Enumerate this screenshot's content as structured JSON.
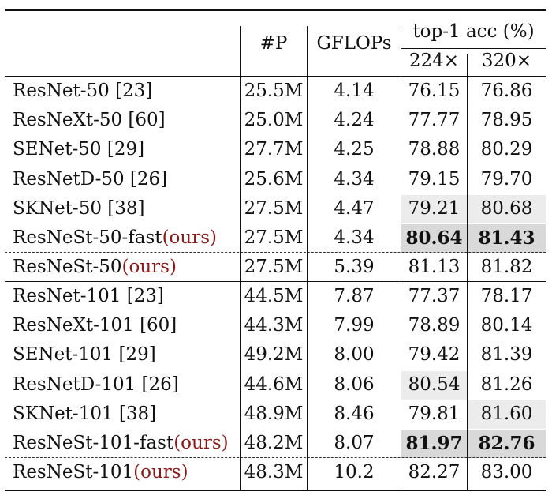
{
  "header": {
    "params": "#P",
    "gflops": "GFLOPs",
    "acc_group": "top-1 acc (%)",
    "res224": "224×",
    "res320": "320×"
  },
  "colors": {
    "ours": "#8b1a1a",
    "shade_light": "#ececec",
    "shade_dark": "#d9d9d9"
  },
  "groups": [
    {
      "rows": [
        {
          "name": "ResNet-50 [23]",
          "ours": "",
          "params": "25.5M",
          "gflops": "4.14",
          "acc224": "76.15",
          "acc320": "76.86"
        },
        {
          "name": "ResNeXt-50 [60]",
          "ours": "",
          "params": "25.0M",
          "gflops": "4.24",
          "acc224": "77.77",
          "acc320": "78.95"
        },
        {
          "name": "SENet-50 [29]",
          "ours": "",
          "params": "27.7M",
          "gflops": "4.25",
          "acc224": "78.88",
          "acc320": "80.29"
        },
        {
          "name": "ResNetD-50 [26]",
          "ours": "",
          "params": "25.6M",
          "gflops": "4.34",
          "acc224": "79.15",
          "acc320": "79.70"
        },
        {
          "name": "SKNet-50 [38]",
          "ours": "",
          "params": "27.5M",
          "gflops": "4.47",
          "acc224": "79.21",
          "acc320": "80.68",
          "shade224": "light",
          "shade320": "light"
        },
        {
          "name": "ResNeSt-50-fast",
          "ours": "(ours)",
          "params": "27.5M",
          "gflops": "4.34",
          "acc224": "80.64",
          "acc320": "81.43",
          "bold": true,
          "shade224": "dark",
          "shade320": "dark"
        },
        {
          "name": "ResNeSt-50",
          "ours": "(ours)",
          "params": "27.5M",
          "gflops": "5.39",
          "acc224": "81.13",
          "acc320": "81.82",
          "dashed_above": true
        }
      ]
    },
    {
      "rows": [
        {
          "name": "ResNet-101 [23]",
          "ours": "",
          "params": "44.5M",
          "gflops": "7.87",
          "acc224": "77.37",
          "acc320": "78.17"
        },
        {
          "name": "ResNeXt-101 [60]",
          "ours": "",
          "params": "44.3M",
          "gflops": "7.99",
          "acc224": "78.89",
          "acc320": "80.14"
        },
        {
          "name": "SENet-101 [29]",
          "ours": "",
          "params": "49.2M",
          "gflops": "8.00",
          "acc224": "79.42",
          "acc320": "81.39"
        },
        {
          "name": "ResNetD-101 [26]",
          "ours": "",
          "params": "44.6M",
          "gflops": "8.06",
          "acc224": "80.54",
          "acc320": "81.26",
          "shade224": "light"
        },
        {
          "name": "SKNet-101 [38]",
          "ours": "",
          "params": "48.9M",
          "gflops": "8.46",
          "acc224": "79.81",
          "acc320": "81.60",
          "shade320": "light"
        },
        {
          "name": "ResNeSt-101-fast",
          "ours": "(ours)",
          "params": "48.2M",
          "gflops": "8.07",
          "acc224": "81.97",
          "acc320": "82.76",
          "bold": true,
          "shade224": "dark",
          "shade320": "dark"
        },
        {
          "name": "ResNeSt-101",
          "ours": "(ours)",
          "params": "48.3M",
          "gflops": "10.2",
          "acc224": "82.27",
          "acc320": "83.00",
          "dashed_above": true
        }
      ]
    }
  ]
}
